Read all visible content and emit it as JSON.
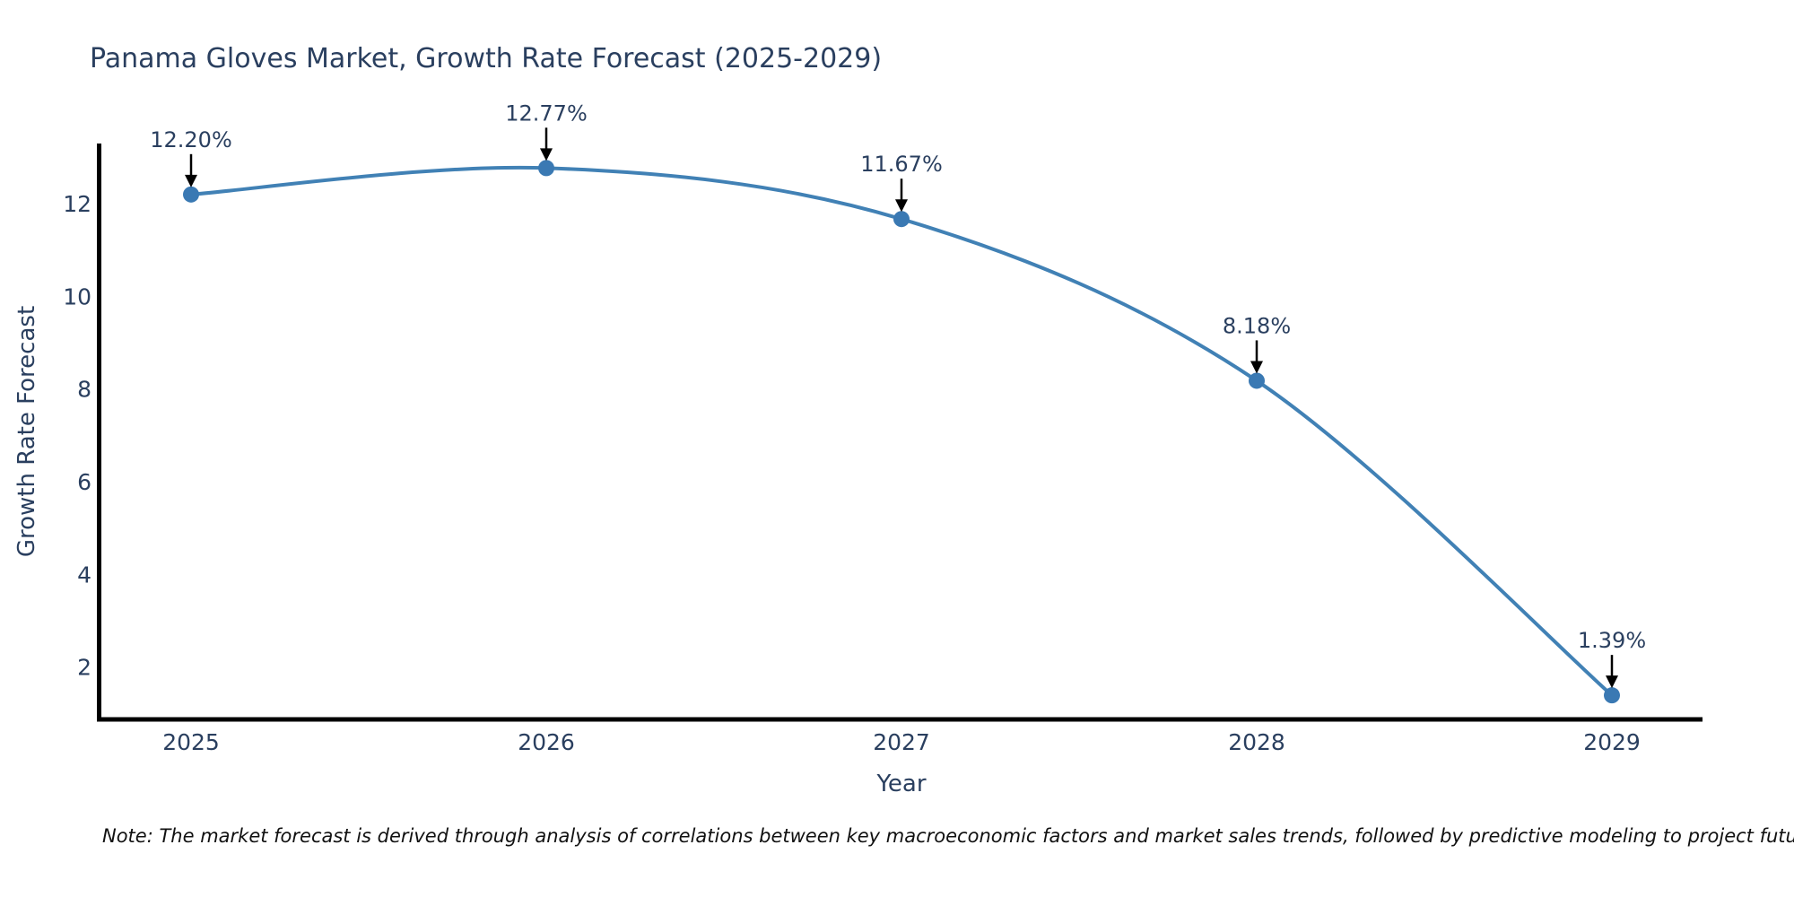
{
  "title": "Panama Gloves Market, Growth Rate Forecast (2025-2029)",
  "note": "Note: The market forecast is derived through analysis of correlations between key macroeconomic factors and market sales trends, followed by predictive modeling to project future sales",
  "colors": {
    "line": "#4181b5",
    "marker": "#3a79b3",
    "axis": "#000000",
    "chart_text": "#2a3f5f",
    "annotation_text": "#2a3f5f",
    "arrow": "#000000",
    "note_text": "#111111",
    "background": "#ffffff"
  },
  "chart_data": {
    "type": "line",
    "line_shape": "spline",
    "markers": true,
    "grid": false,
    "legend": false,
    "title": "Panama Gloves Market, Growth Rate Forecast (2025-2029)",
    "xlabel": "Year",
    "ylabel": "Growth Rate Forecast",
    "x": [
      "2025",
      "2026",
      "2027",
      "2028",
      "2029"
    ],
    "values": [
      12.2,
      12.77,
      11.67,
      8.18,
      1.39
    ],
    "point_labels": [
      "12.20%",
      "12.77%",
      "11.67%",
      "8.18%",
      "1.39%"
    ],
    "annotation_arrows": true,
    "yticks": [
      2,
      4,
      6,
      8,
      10,
      12
    ],
    "ylim": [
      0.87,
      13.3
    ],
    "axis_lines": [
      "left",
      "bottom"
    ]
  }
}
